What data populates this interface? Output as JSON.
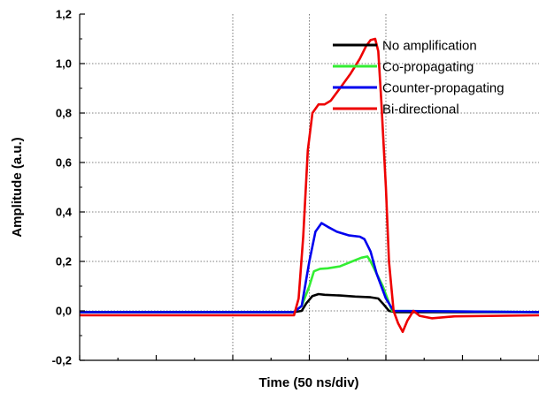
{
  "chart_data": {
    "type": "line",
    "title": "",
    "xlabel": "Time (50 ns/div)",
    "ylabel": "Amplitude (a.u.)",
    "x_unit": "ns",
    "xlim": [
      -150,
      150
    ],
    "ylim": [
      -0.2,
      1.2
    ],
    "yticks": [
      "-0,2",
      "0,0",
      "0,2",
      "0,4",
      "0,6",
      "0,8",
      "1,0",
      "1,2"
    ],
    "ytick_values": [
      -0.2,
      0.0,
      0.2,
      0.4,
      0.6,
      0.8,
      1.0,
      1.2
    ],
    "x_grid_values": [
      -50,
      0,
      50
    ],
    "y_grid_values": [
      0.0,
      0.2,
      0.4,
      0.6,
      0.8,
      1.0
    ],
    "grid": true,
    "legend_position": "top-right",
    "series": [
      {
        "name": "No amplification",
        "color": "#000000",
        "points": [
          [
            -150,
            -0.005
          ],
          [
            -10,
            -0.005
          ],
          [
            -5,
            0.0
          ],
          [
            -2,
            0.03
          ],
          [
            2,
            0.06
          ],
          [
            6,
            0.068
          ],
          [
            10,
            0.065
          ],
          [
            20,
            0.062
          ],
          [
            30,
            0.058
          ],
          [
            40,
            0.055
          ],
          [
            45,
            0.05
          ],
          [
            48,
            0.03
          ],
          [
            52,
            0.0
          ],
          [
            56,
            -0.005
          ],
          [
            150,
            -0.005
          ]
        ]
      },
      {
        "name": "Co-propagating",
        "color": "#33ee33",
        "points": [
          [
            -150,
            -0.005
          ],
          [
            -10,
            -0.005
          ],
          [
            -5,
            0.02
          ],
          [
            0,
            0.1
          ],
          [
            3,
            0.16
          ],
          [
            7,
            0.17
          ],
          [
            12,
            0.172
          ],
          [
            20,
            0.18
          ],
          [
            28,
            0.2
          ],
          [
            34,
            0.215
          ],
          [
            38,
            0.22
          ],
          [
            40,
            0.2
          ],
          [
            48,
            0.1
          ],
          [
            54,
            0.0
          ],
          [
            150,
            -0.005
          ]
        ]
      },
      {
        "name": "Counter-propagating",
        "color": "#0000ee",
        "points": [
          [
            -150,
            -0.005
          ],
          [
            -10,
            -0.005
          ],
          [
            -5,
            0.02
          ],
          [
            0,
            0.2
          ],
          [
            4,
            0.32
          ],
          [
            8,
            0.355
          ],
          [
            12,
            0.34
          ],
          [
            18,
            0.32
          ],
          [
            26,
            0.305
          ],
          [
            33,
            0.3
          ],
          [
            36,
            0.29
          ],
          [
            40,
            0.24
          ],
          [
            44,
            0.15
          ],
          [
            50,
            0.05
          ],
          [
            55,
            0.0
          ],
          [
            150,
            -0.005
          ]
        ]
      },
      {
        "name": "Bi-directional",
        "color": "#ee0000",
        "points": [
          [
            -150,
            -0.018
          ],
          [
            -10,
            -0.018
          ],
          [
            -7,
            0.05
          ],
          [
            -4,
            0.3
          ],
          [
            -1,
            0.65
          ],
          [
            2,
            0.8
          ],
          [
            6,
            0.835
          ],
          [
            10,
            0.835
          ],
          [
            14,
            0.85
          ],
          [
            20,
            0.9
          ],
          [
            27,
            0.96
          ],
          [
            33,
            1.02
          ],
          [
            37,
            1.07
          ],
          [
            40,
            1.095
          ],
          [
            43,
            1.1
          ],
          [
            45,
            1.05
          ],
          [
            47,
            0.85
          ],
          [
            50,
            0.5
          ],
          [
            52,
            0.2
          ],
          [
            55,
            0.0
          ],
          [
            58,
            -0.05
          ],
          [
            61,
            -0.085
          ],
          [
            64,
            -0.04
          ],
          [
            68,
            0.0
          ],
          [
            72,
            -0.02
          ],
          [
            80,
            -0.03
          ],
          [
            95,
            -0.022
          ],
          [
            150,
            -0.018
          ]
        ]
      }
    ]
  },
  "legend": {
    "items": [
      "No amplification",
      "Co-propagating",
      "Counter-propagating",
      "Bi-directional"
    ]
  }
}
